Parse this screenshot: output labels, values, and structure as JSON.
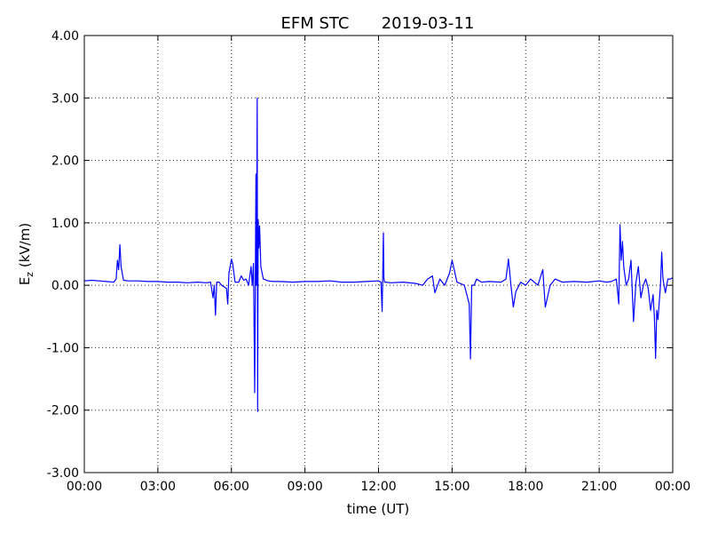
{
  "chart_data": {
    "type": "line",
    "title": "EFM STC",
    "date": "2019-03-11",
    "xlabel": "time (UT)",
    "ylabel_main": "E",
    "ylabel_sub": "z",
    "ylabel_rest": " (kV/m)",
    "xlim": [
      0,
      24
    ],
    "ylim": [
      -3,
      4
    ],
    "x_ticks": [
      0,
      3,
      6,
      9,
      12,
      15,
      18,
      21,
      24
    ],
    "x_tick_labels": [
      "00:00",
      "03:00",
      "06:00",
      "09:00",
      "12:00",
      "15:00",
      "18:00",
      "21:00",
      "00:00"
    ],
    "y_ticks": [
      -3,
      -2,
      -1,
      0,
      1,
      2,
      3,
      4
    ],
    "y_tick_labels": [
      "-3.00",
      "-2.00",
      "-1.00",
      "0.00",
      "1.00",
      "2.00",
      "3.00",
      "4.00"
    ],
    "grid": true,
    "series": [
      {
        "color": "#0000ff",
        "x": [
          0.0,
          0.3,
          0.6,
          0.9,
          1.2,
          1.3,
          1.35,
          1.4,
          1.45,
          1.5,
          1.6,
          1.8,
          2.2,
          2.6,
          3.0,
          3.4,
          3.8,
          4.2,
          4.6,
          5.0,
          5.15,
          5.25,
          5.3,
          5.35,
          5.4,
          5.5,
          5.6,
          5.8,
          5.85,
          5.9,
          6.0,
          6.05,
          6.15,
          6.3,
          6.4,
          6.5,
          6.6,
          6.7,
          6.8,
          6.85,
          6.9,
          6.95,
          7.0,
          7.02,
          7.05,
          7.07,
          7.09,
          7.12,
          7.15,
          7.2,
          7.3,
          7.5,
          7.7,
          8.0,
          8.5,
          9.0,
          9.5,
          10.0,
          10.5,
          11.0,
          11.5,
          12.0,
          12.1,
          12.15,
          12.2,
          12.22,
          12.25,
          12.3,
          12.5,
          13.0,
          13.5,
          13.8,
          14.0,
          14.2,
          14.3,
          14.5,
          14.7,
          14.9,
          15.0,
          15.2,
          15.5,
          15.7,
          15.75,
          15.8,
          15.9,
          16.0,
          16.2,
          16.5,
          17.0,
          17.2,
          17.3,
          17.4,
          17.5,
          17.6,
          17.8,
          18.0,
          18.2,
          18.5,
          18.7,
          18.8,
          19.0,
          19.2,
          19.5,
          20.0,
          20.5,
          21.0,
          21.3,
          21.5,
          21.7,
          21.8,
          21.85,
          21.9,
          21.95,
          22.0,
          22.1,
          22.2,
          22.3,
          22.4,
          22.5,
          22.6,
          22.7,
          22.8,
          22.9,
          23.0,
          23.1,
          23.2,
          23.25,
          23.3,
          23.35,
          23.4,
          23.5,
          23.55,
          23.6,
          23.7,
          23.8,
          23.9,
          24.0
        ],
        "y": [
          0.07,
          0.08,
          0.07,
          0.06,
          0.05,
          0.1,
          0.4,
          0.25,
          0.65,
          0.3,
          0.08,
          0.07,
          0.07,
          0.06,
          0.06,
          0.05,
          0.05,
          0.04,
          0.05,
          0.04,
          0.05,
          -0.2,
          0.0,
          -0.48,
          0.05,
          0.05,
          0.0,
          -0.05,
          -0.3,
          0.2,
          0.42,
          0.35,
          0.05,
          0.05,
          0.15,
          0.08,
          0.1,
          0.0,
          0.3,
          0.0,
          0.35,
          -1.72,
          1.78,
          0.0,
          3.0,
          -2.02,
          1.05,
          0.6,
          0.95,
          0.3,
          0.1,
          0.07,
          0.06,
          0.06,
          0.05,
          0.06,
          0.06,
          0.07,
          0.05,
          0.05,
          0.06,
          0.07,
          0.05,
          -0.42,
          0.84,
          0.1,
          0.05,
          0.05,
          0.04,
          0.05,
          0.03,
          0.0,
          0.1,
          0.15,
          -0.12,
          0.1,
          0.0,
          0.2,
          0.4,
          0.05,
          0.0,
          -0.3,
          -1.18,
          0.0,
          0.0,
          0.1,
          0.05,
          0.06,
          0.05,
          0.1,
          0.42,
          0.0,
          -0.35,
          -0.1,
          0.05,
          0.0,
          0.1,
          0.0,
          0.25,
          -0.35,
          0.0,
          0.1,
          0.05,
          0.06,
          0.05,
          0.07,
          0.05,
          0.06,
          0.1,
          -0.3,
          0.97,
          0.4,
          0.7,
          0.3,
          0.0,
          0.1,
          0.4,
          -0.58,
          0.05,
          0.3,
          -0.2,
          0.0,
          0.1,
          -0.05,
          -0.4,
          -0.15,
          -0.5,
          -1.17,
          -0.4,
          -0.55,
          0.0,
          0.53,
          0.1,
          -0.12,
          0.1,
          0.1,
          0.12
        ]
      }
    ]
  }
}
